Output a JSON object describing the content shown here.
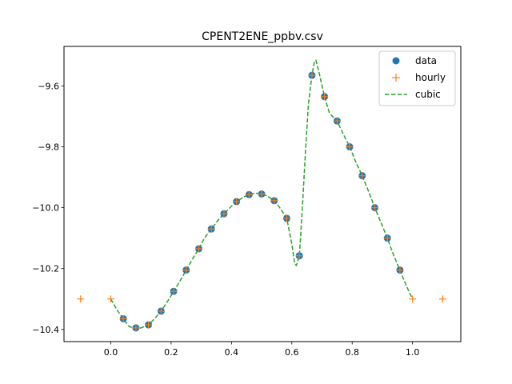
{
  "chart_data": {
    "type": "line",
    "title": "CPENT2ENE_ppbv.csv",
    "xlabel": "",
    "ylabel": "",
    "xlim": [
      -0.155,
      1.16
    ],
    "ylim": [
      -10.44,
      -9.47
    ],
    "xticks": [
      0.0,
      0.2,
      0.4,
      0.6,
      0.8,
      1.0
    ],
    "xtick_labels": [
      "0.0",
      "0.2",
      "0.4",
      "0.6",
      "0.8",
      "1.0"
    ],
    "yticks": [
      -10.4,
      -10.2,
      -10.0,
      -9.8,
      -9.6
    ],
    "ytick_labels": [
      "−10.4",
      "−10.2",
      "−10.0",
      "−9.8",
      "−9.6"
    ],
    "grid": false,
    "legend_position": "top-right",
    "colors": {
      "data": "#1f77b4",
      "hourly": "#ff7f0e",
      "cubic": "#2ca02c"
    },
    "series": [
      {
        "name": "data",
        "style": "markers-circle",
        "x": [
          0.0417,
          0.0833,
          0.125,
          0.1667,
          0.2083,
          0.25,
          0.2917,
          0.3333,
          0.375,
          0.4167,
          0.4583,
          0.5,
          0.5417,
          0.5833,
          0.625,
          0.6667,
          0.7083,
          0.75,
          0.7917,
          0.8333,
          0.875,
          0.9167,
          0.9583
        ],
        "y": [
          -10.365,
          -10.395,
          -10.385,
          -10.34,
          -10.275,
          -10.205,
          -10.135,
          -10.07,
          -10.02,
          -9.98,
          -9.957,
          -9.955,
          -9.977,
          -10.035,
          -10.158,
          -9.565,
          -9.635,
          -9.715,
          -9.8,
          -9.895,
          -10.0,
          -10.1,
          -10.205
        ]
      },
      {
        "name": "hourly",
        "style": "markers-plus",
        "x": [
          -0.1,
          0.0,
          0.0417,
          0.0833,
          0.125,
          0.1667,
          0.2083,
          0.25,
          0.2917,
          0.3333,
          0.375,
          0.4167,
          0.4583,
          0.5,
          0.5417,
          0.5833,
          0.625,
          0.6667,
          0.7083,
          0.75,
          0.7917,
          0.8333,
          0.875,
          0.9167,
          0.9583,
          1.0,
          1.1
        ],
        "y": [
          -10.3,
          -10.3,
          -10.365,
          -10.395,
          -10.385,
          -10.34,
          -10.275,
          -10.205,
          -10.135,
          -10.07,
          -10.02,
          -9.98,
          -9.957,
          -9.955,
          -9.977,
          -10.035,
          -10.158,
          -9.565,
          -9.635,
          -9.715,
          -9.8,
          -9.895,
          -10.0,
          -10.1,
          -10.205,
          -10.3,
          -10.3
        ]
      },
      {
        "name": "cubic",
        "style": "dashed-line",
        "x": [
          0.0,
          0.02,
          0.0417,
          0.06,
          0.0833,
          0.1,
          0.125,
          0.145,
          0.1667,
          0.19,
          0.2083,
          0.23,
          0.25,
          0.27,
          0.2917,
          0.31,
          0.3333,
          0.355,
          0.375,
          0.395,
          0.4167,
          0.44,
          0.4583,
          0.48,
          0.5,
          0.52,
          0.5417,
          0.56,
          0.5833,
          0.6,
          0.61,
          0.615,
          0.625,
          0.635,
          0.645,
          0.655,
          0.6667,
          0.675,
          0.68,
          0.69,
          0.7083,
          0.725,
          0.75,
          0.77,
          0.7917,
          0.81,
          0.8333,
          0.855,
          0.875,
          0.895,
          0.9167,
          0.935,
          0.9583,
          0.98,
          1.0
        ],
        "y": [
          -10.3,
          -10.335,
          -10.365,
          -10.39,
          -10.398,
          -10.395,
          -10.385,
          -10.365,
          -10.34,
          -10.305,
          -10.275,
          -10.24,
          -10.205,
          -10.17,
          -10.135,
          -10.1,
          -10.07,
          -10.042,
          -10.02,
          -10.0,
          -9.98,
          -9.965,
          -9.957,
          -9.952,
          -9.955,
          -9.962,
          -9.977,
          -10.0,
          -10.035,
          -10.12,
          -10.185,
          -10.19,
          -10.158,
          -10.0,
          -9.82,
          -9.66,
          -9.565,
          -9.52,
          -9.515,
          -9.555,
          -9.635,
          -9.69,
          -9.715,
          -9.757,
          -9.8,
          -9.845,
          -9.895,
          -9.948,
          -10.0,
          -10.048,
          -10.1,
          -10.15,
          -10.205,
          -10.258,
          -10.3
        ]
      }
    ]
  }
}
